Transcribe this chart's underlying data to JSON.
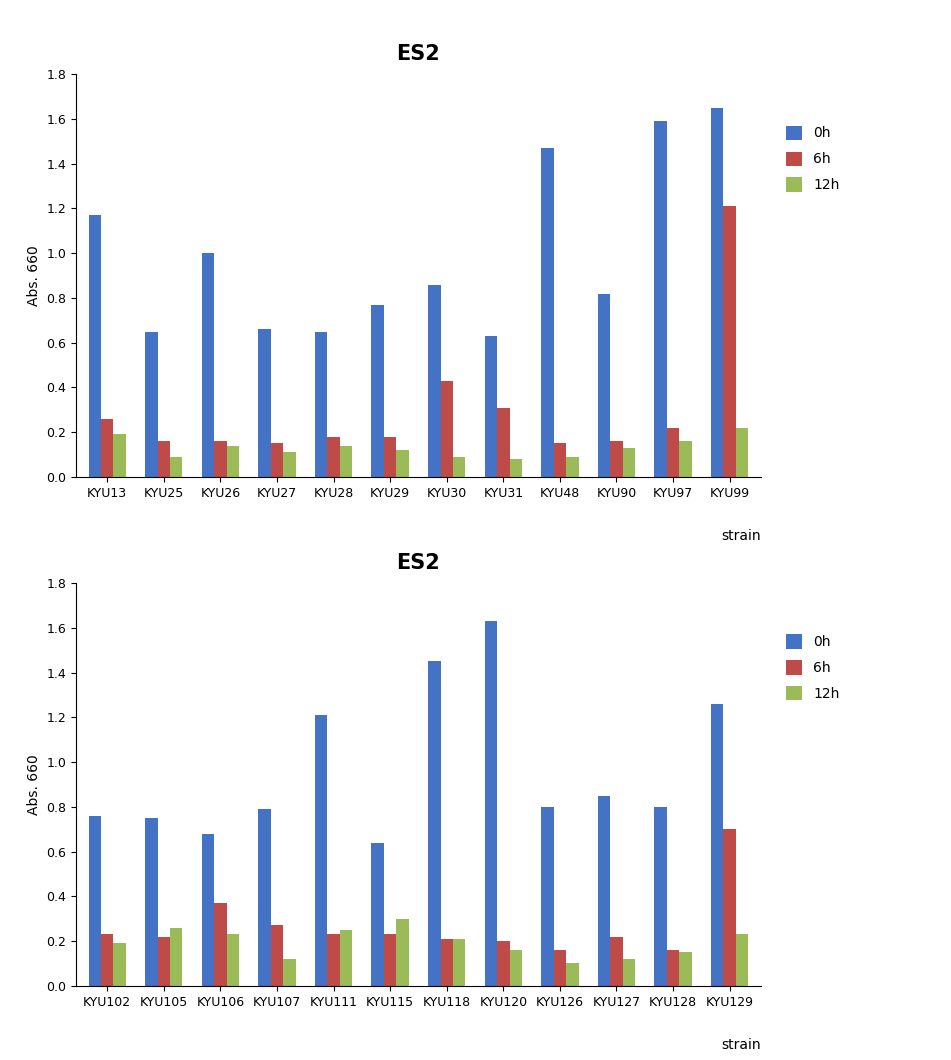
{
  "chart1": {
    "title": "ES2",
    "categories": [
      "KYU13",
      "KYU25",
      "KYU26",
      "KYU27",
      "KYU28",
      "KYU29",
      "KYU30",
      "KYU31",
      "KYU48",
      "KYU90",
      "KYU97",
      "KYU99"
    ],
    "values_0h": [
      1.17,
      0.65,
      1.0,
      0.66,
      0.65,
      0.77,
      0.86,
      0.63,
      1.47,
      0.82,
      1.59,
      1.65
    ],
    "values_6h": [
      0.26,
      0.16,
      0.16,
      0.15,
      0.18,
      0.18,
      0.43,
      0.31,
      0.15,
      0.16,
      0.22,
      1.21
    ],
    "values_12h": [
      0.19,
      0.09,
      0.14,
      0.11,
      0.14,
      0.12,
      0.09,
      0.08,
      0.09,
      0.13,
      0.16,
      0.22
    ],
    "ylabel": "Abs. 660",
    "xlabel": "strain",
    "ylim": [
      0,
      1.8
    ],
    "yticks": [
      0,
      0.2,
      0.4,
      0.6,
      0.8,
      1.0,
      1.2,
      1.4,
      1.6,
      1.8
    ]
  },
  "chart2": {
    "title": "ES2",
    "categories": [
      "KYU102",
      "KYU105",
      "KYU106",
      "KYU107",
      "KYU111",
      "KYU115",
      "KYU118",
      "KYU120",
      "KYU126",
      "KYU127",
      "KYU128",
      "KYU129"
    ],
    "values_0h": [
      0.76,
      0.75,
      0.68,
      0.79,
      1.21,
      0.64,
      1.45,
      1.63,
      0.8,
      0.85,
      0.8,
      1.26
    ],
    "values_6h": [
      0.23,
      0.22,
      0.37,
      0.27,
      0.23,
      0.23,
      0.21,
      0.2,
      0.16,
      0.22,
      0.16,
      0.7
    ],
    "values_12h": [
      0.19,
      0.26,
      0.23,
      0.12,
      0.25,
      0.3,
      0.21,
      0.16,
      0.1,
      0.12,
      0.15,
      0.23
    ],
    "ylabel": "Abs. 660",
    "xlabel": "strain",
    "ylim": [
      0,
      1.8
    ],
    "yticks": [
      0,
      0.2,
      0.4,
      0.6,
      0.8,
      1.0,
      1.2,
      1.4,
      1.6,
      1.8
    ]
  },
  "color_0h": "#4472C4",
  "color_6h": "#BE4B48",
  "color_12h": "#9BBB59",
  "legend_labels": [
    "0h",
    "6h",
    "12h"
  ],
  "bar_width": 0.22,
  "title_fontsize": 15,
  "axis_label_fontsize": 10,
  "tick_fontsize": 9,
  "legend_fontsize": 10,
  "bg_color": "#FFFFFF"
}
